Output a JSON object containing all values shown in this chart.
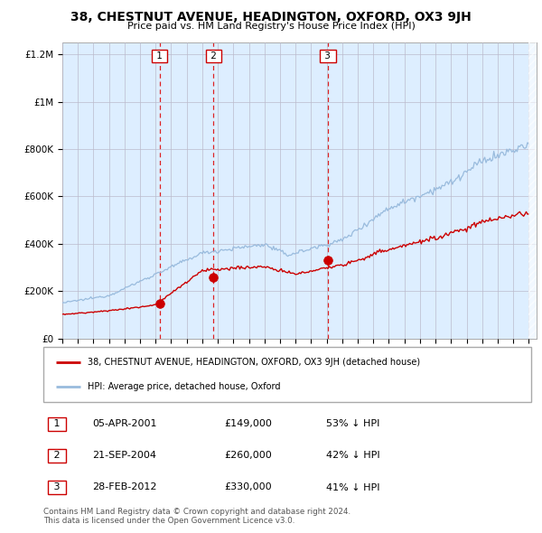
{
  "title": "38, CHESTNUT AVENUE, HEADINGTON, OXFORD, OX3 9JH",
  "subtitle": "Price paid vs. HM Land Registry's House Price Index (HPI)",
  "sale_dates_float": [
    2001.25,
    2004.72,
    2012.08
  ],
  "sale_prices": [
    149000,
    260000,
    330000
  ],
  "sale_labels": [
    "1",
    "2",
    "3"
  ],
  "sale_hpi_pct": [
    "53% ↓ HPI",
    "42% ↓ HPI",
    "41% ↓ HPI"
  ],
  "sale_date_labels": [
    "05-APR-2001",
    "21-SEP-2004",
    "28-FEB-2012"
  ],
  "sale_price_labels": [
    "£149,000",
    "£260,000",
    "£330,000"
  ],
  "legend_line1": "38, CHESTNUT AVENUE, HEADINGTON, OXFORD, OX3 9JH (detached house)",
  "legend_line2": "HPI: Average price, detached house, Oxford",
  "footnote1": "Contains HM Land Registry data © Crown copyright and database right 2024.",
  "footnote2": "This data is licensed under the Open Government Licence v3.0.",
  "red_line_color": "#cc0000",
  "blue_line_color": "#99bbdd",
  "blue_fill_color": "#ddeeff",
  "grid_color": "#bbbbcc",
  "ylim": [
    0,
    1250000
  ],
  "yticks": [
    0,
    200000,
    400000,
    600000,
    800000,
    1000000,
    1200000
  ],
  "ytick_labels": [
    "£0",
    "£200K",
    "£400K",
    "£600K",
    "£800K",
    "£1M",
    "£1.2M"
  ],
  "hpi_seed": 12345,
  "red_seed": 99999
}
